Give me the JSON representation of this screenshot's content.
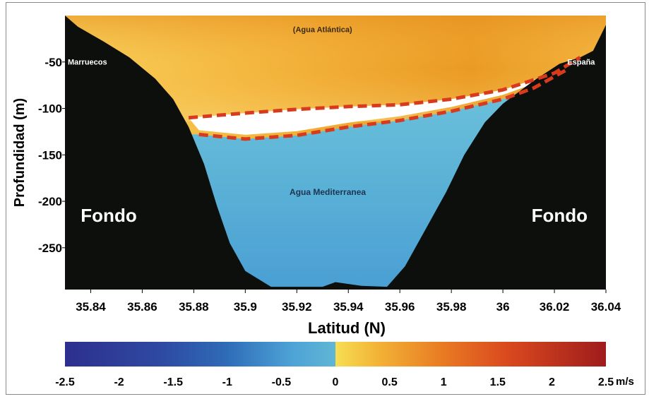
{
  "chart_data": {
    "type": "heatmap",
    "title": "",
    "xlabel": "Latitud (N)",
    "ylabel": "Profundidad (m)",
    "xlim": [
      35.83,
      36.04
    ],
    "ylim": [
      -295,
      0
    ],
    "x_ticks": [
      {
        "value": 35.84,
        "label": "35.84"
      },
      {
        "value": 35.86,
        "label": "35.86"
      },
      {
        "value": 35.88,
        "label": "35.88"
      },
      {
        "value": 35.9,
        "label": "35.9"
      },
      {
        "value": 35.92,
        "label": "35.92"
      },
      {
        "value": 35.94,
        "label": "35.94"
      },
      {
        "value": 35.96,
        "label": "35.96"
      },
      {
        "value": 35.98,
        "label": "35.98"
      },
      {
        "value": 36.0,
        "label": "36"
      },
      {
        "value": 36.02,
        "label": "36.02"
      },
      {
        "value": 36.04,
        "label": "36.04"
      }
    ],
    "y_ticks": [
      {
        "value": -50,
        "label": "-50"
      },
      {
        "value": -100,
        "label": "-100"
      },
      {
        "value": -150,
        "label": "-150"
      },
      {
        "value": -200,
        "label": "-200"
      },
      {
        "value": -250,
        "label": "-250"
      }
    ],
    "annotations": {
      "atlantic": "(Agua Atlántica)",
      "mediterranean": "Agua Mediterranea",
      "left_coast": "Marruecos",
      "right_coast": "España",
      "floor_left": "Fondo",
      "floor_right": "Fondo"
    },
    "seafloor_profile": [
      [
        35.83,
        0
      ],
      [
        35.835,
        -12
      ],
      [
        35.845,
        -28
      ],
      [
        35.855,
        -45
      ],
      [
        35.865,
        -68
      ],
      [
        35.872,
        -90
      ],
      [
        35.878,
        -120
      ],
      [
        35.884,
        -160
      ],
      [
        35.889,
        -205
      ],
      [
        35.894,
        -245
      ],
      [
        35.9,
        -275
      ],
      [
        35.91,
        -292
      ],
      [
        35.93,
        -292
      ],
      [
        35.935,
        -287
      ],
      [
        35.945,
        -291
      ],
      [
        35.955,
        -292
      ],
      [
        35.962,
        -270
      ],
      [
        35.97,
        -230
      ],
      [
        35.978,
        -190
      ],
      [
        35.985,
        -150
      ],
      [
        35.993,
        -115
      ],
      [
        36.0,
        -95
      ],
      [
        36.012,
        -70
      ],
      [
        36.022,
        -52
      ],
      [
        36.03,
        -45
      ],
      [
        36.035,
        -38
      ],
      [
        36.04,
        -10
      ]
    ],
    "interface_upper": [
      [
        35.878,
        -110
      ],
      [
        35.9,
        -105
      ],
      [
        35.92,
        -101
      ],
      [
        35.94,
        -98
      ],
      [
        35.96,
        -96
      ],
      [
        35.98,
        -90
      ],
      [
        36.0,
        -80
      ],
      [
        36.02,
        -62
      ],
      [
        36.03,
        -45
      ]
    ],
    "interface_lower": [
      [
        35.882,
        -128
      ],
      [
        35.9,
        -133
      ],
      [
        35.92,
        -129
      ],
      [
        35.94,
        -120
      ],
      [
        35.96,
        -113
      ],
      [
        35.98,
        -103
      ],
      [
        36.0,
        -90
      ],
      [
        36.012,
        -78
      ],
      [
        36.025,
        -58
      ]
    ],
    "colorbar": {
      "min": -2.5,
      "max": 2.5,
      "unit": "m/s",
      "ticks": [
        {
          "value": -2.5,
          "label": "-2.5"
        },
        {
          "value": -2,
          "label": "-2"
        },
        {
          "value": -1.5,
          "label": "-1.5"
        },
        {
          "value": -1,
          "label": "-1"
        },
        {
          "value": -0.5,
          "label": "-0.5"
        },
        {
          "value": 0,
          "label": "0"
        },
        {
          "value": 0.5,
          "label": "0.5"
        },
        {
          "value": 1,
          "label": "1"
        },
        {
          "value": 1.5,
          "label": "1.5"
        },
        {
          "value": 2,
          "label": "2"
        },
        {
          "value": 2.5,
          "label": "2.5"
        }
      ]
    },
    "colors": {
      "seafloor": "#0d0f0c",
      "atlantic_light": "#f6c24a",
      "atlantic_dark": "#e8921e",
      "mediterranean": "#5fb9d6",
      "mediterranean_dark": "#3f8fcf",
      "interface": "#d83a1e",
      "frame": "#000000"
    }
  }
}
